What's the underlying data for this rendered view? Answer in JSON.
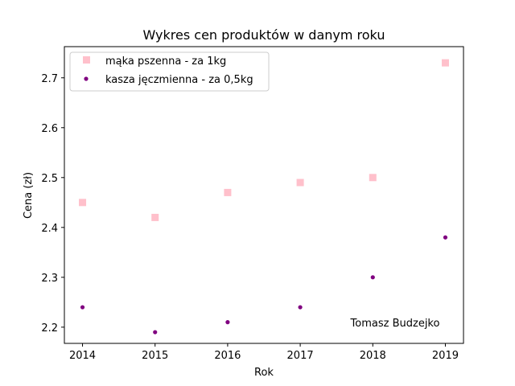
{
  "chart_data": {
    "type": "scatter",
    "title": "Wykres cen produktów w danym roku",
    "xlabel": "Rok",
    "ylabel": "Cena (zł)",
    "xlim": [
      2013.75,
      2019.25
    ],
    "ylim": [
      2.1675,
      2.7625
    ],
    "x_ticks": [
      2014,
      2015,
      2016,
      2017,
      2018,
      2019
    ],
    "y_ticks": [
      2.2,
      2.3,
      2.4,
      2.5,
      2.6,
      2.7
    ],
    "x_tick_labels": [
      "2014",
      "2015",
      "2016",
      "2017",
      "2018",
      "2019"
    ],
    "y_tick_labels": [
      "2.2",
      "2.3",
      "2.4",
      "2.5",
      "2.6",
      "2.7"
    ],
    "grid": false,
    "legend_position": "top-left",
    "annotation": "Tomasz Budzejko",
    "series": [
      {
        "name": "mąka pszenna - za 1kg",
        "marker": "square",
        "color": "#ffc0cb",
        "x": [
          2014,
          2015,
          2016,
          2017,
          2018,
          2019
        ],
        "y": [
          2.45,
          2.42,
          2.47,
          2.49,
          2.5,
          2.73
        ]
      },
      {
        "name": "kasza jęczmienna - za 0,5kg",
        "marker": "circle",
        "color": "#800080",
        "x": [
          2014,
          2015,
          2016,
          2017,
          2018,
          2019
        ],
        "y": [
          2.24,
          2.19,
          2.21,
          2.24,
          2.3,
          2.38
        ]
      }
    ]
  }
}
